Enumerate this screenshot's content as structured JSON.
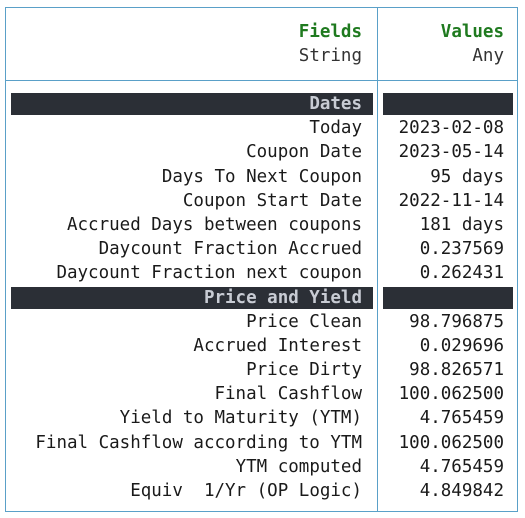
{
  "header": {
    "fields_name": "Fields",
    "fields_type": "String",
    "values_name": "Values",
    "values_type": "Any"
  },
  "rows": [
    {
      "kind": "section",
      "label": "Dates"
    },
    {
      "kind": "item",
      "label": "Today",
      "value": "2023-02-08"
    },
    {
      "kind": "item",
      "label": "Coupon Date",
      "value": "2023-05-14"
    },
    {
      "kind": "item",
      "label": "Days To Next Coupon",
      "value": "95 days"
    },
    {
      "kind": "item",
      "label": "Coupon Start Date",
      "value": "2022-11-14"
    },
    {
      "kind": "item",
      "label": "Accrued Days between coupons",
      "value": "181 days"
    },
    {
      "kind": "item",
      "label": "Daycount Fraction Accrued",
      "value": "0.237569"
    },
    {
      "kind": "item",
      "label": "Daycount Fraction next coupon",
      "value": "0.262431"
    },
    {
      "kind": "section",
      "label": "Price and Yield"
    },
    {
      "kind": "item",
      "label": "Price Clean",
      "value": "98.796875"
    },
    {
      "kind": "item",
      "label": "Accrued Interest",
      "value": "0.029696"
    },
    {
      "kind": "item",
      "label": "Price Dirty",
      "value": "98.826571"
    },
    {
      "kind": "item",
      "label": "Final Cashflow",
      "value": "100.062500"
    },
    {
      "kind": "item",
      "label": "Yield to Maturity (YTM)",
      "value": "4.765459"
    },
    {
      "kind": "item",
      "label": "Final Cashflow according to YTM",
      "value": "100.062500"
    },
    {
      "kind": "item",
      "label": "YTM computed",
      "value": "4.765459"
    },
    {
      "kind": "item",
      "label": "Equiv  1/Yr (OP Logic)",
      "value": "4.849842"
    }
  ]
}
